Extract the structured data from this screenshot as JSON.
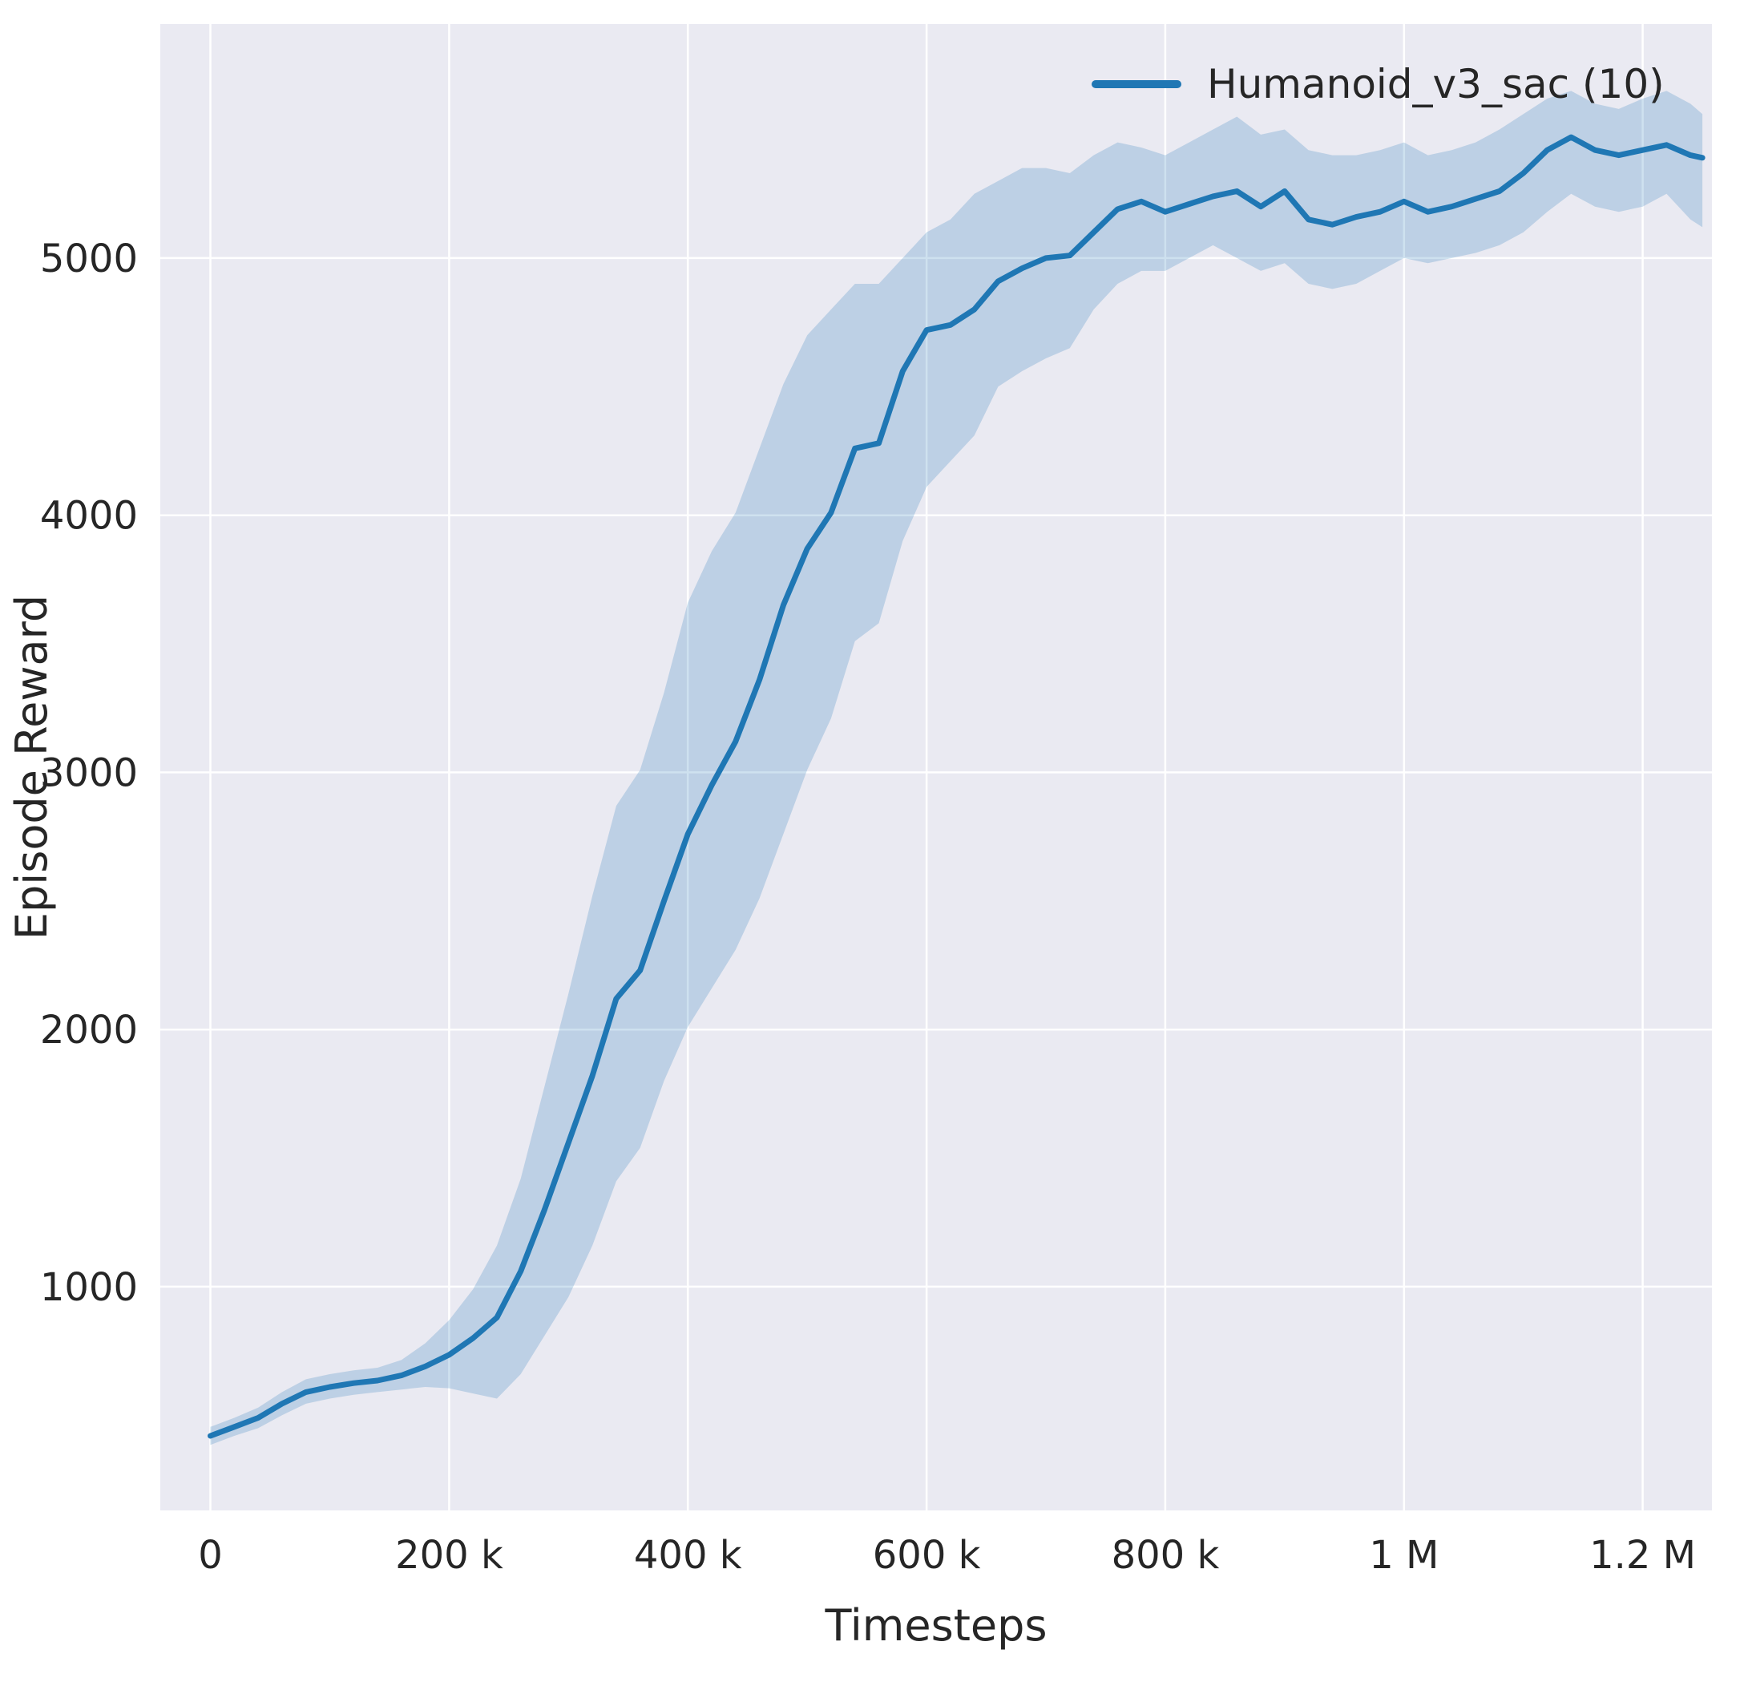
{
  "figure": {
    "background": "#ffffff",
    "plot_background": "#eaeaf2",
    "grid_color": "#ffffff",
    "text_color": "#262626"
  },
  "legend": {
    "label": "Humanoid_v3_sac (10)"
  },
  "chart_data": {
    "type": "line",
    "title": "",
    "xlabel": "Timesteps",
    "ylabel": "Episode Reward",
    "grid": true,
    "legend_position": "upper right",
    "xlim": [
      -42000,
      1258000
    ],
    "ylim": [
      130,
      5910
    ],
    "x_ticks": [
      0,
      200000,
      400000,
      600000,
      800000,
      1000000,
      1200000
    ],
    "x_tick_labels": [
      "0",
      "200 k",
      "400 k",
      "600 k",
      "800 k",
      "1 M",
      "1.2 M"
    ],
    "y_ticks": [
      1000,
      2000,
      3000,
      4000,
      5000
    ],
    "y_tick_labels": [
      "1000",
      "2000",
      "3000",
      "4000",
      "5000"
    ],
    "series": [
      {
        "name": "Humanoid_v3_sac (10)",
        "color": "#1f77b4",
        "band_color": "#1f77b4",
        "band_opacity": 0.22,
        "x": [
          0,
          20000,
          40000,
          60000,
          80000,
          100000,
          120000,
          140000,
          160000,
          180000,
          200000,
          220000,
          240000,
          260000,
          280000,
          300000,
          320000,
          340000,
          360000,
          380000,
          400000,
          420000,
          440000,
          460000,
          480000,
          500000,
          520000,
          540000,
          560000,
          580000,
          600000,
          620000,
          640000,
          660000,
          680000,
          700000,
          720000,
          740000,
          760000,
          780000,
          800000,
          820000,
          840000,
          860000,
          880000,
          900000,
          920000,
          940000,
          960000,
          980000,
          1000000,
          1020000,
          1040000,
          1060000,
          1080000,
          1100000,
          1120000,
          1140000,
          1160000,
          1180000,
          1200000,
          1220000,
          1240000,
          1250000
        ],
        "mean": [
          420,
          455,
          490,
          545,
          590,
          610,
          625,
          635,
          655,
          690,
          735,
          800,
          880,
          1060,
          1300,
          1560,
          1820,
          2120,
          2230,
          2500,
          2760,
          2950,
          3120,
          3360,
          3650,
          3870,
          4010,
          4260,
          4280,
          4560,
          4720,
          4740,
          4800,
          4910,
          4960,
          5000,
          5010,
          5100,
          5190,
          5220,
          5180,
          5210,
          5240,
          5260,
          5200,
          5260,
          5150,
          5130,
          5160,
          5180,
          5220,
          5180,
          5200,
          5230,
          5260,
          5330,
          5420,
          5470,
          5420,
          5400,
          5420,
          5440,
          5400,
          5390
        ],
        "lower": [
          385,
          420,
          450,
          500,
          545,
          565,
          580,
          590,
          600,
          610,
          605,
          585,
          565,
          660,
          810,
          960,
          1160,
          1410,
          1540,
          1800,
          2010,
          2160,
          2310,
          2510,
          2760,
          3010,
          3210,
          3510,
          3580,
          3900,
          4110,
          4210,
          4310,
          4500,
          4560,
          4610,
          4650,
          4800,
          4900,
          4950,
          4950,
          5000,
          5050,
          5000,
          4950,
          4980,
          4900,
          4880,
          4900,
          4950,
          5000,
          4980,
          5000,
          5020,
          5050,
          5100,
          5180,
          5250,
          5200,
          5180,
          5200,
          5250,
          5150,
          5120
        ],
        "upper": [
          455,
          490,
          530,
          590,
          640,
          660,
          675,
          685,
          715,
          780,
          870,
          990,
          1160,
          1420,
          1780,
          2140,
          2520,
          2870,
          3010,
          3310,
          3660,
          3860,
          4010,
          4260,
          4510,
          4700,
          4800,
          4900,
          4900,
          5000,
          5100,
          5150,
          5250,
          5300,
          5350,
          5350,
          5330,
          5400,
          5450,
          5430,
          5400,
          5450,
          5500,
          5550,
          5480,
          5500,
          5420,
          5400,
          5400,
          5420,
          5450,
          5400,
          5420,
          5450,
          5500,
          5560,
          5620,
          5650,
          5600,
          5580,
          5620,
          5650,
          5600,
          5560
        ]
      }
    ]
  }
}
